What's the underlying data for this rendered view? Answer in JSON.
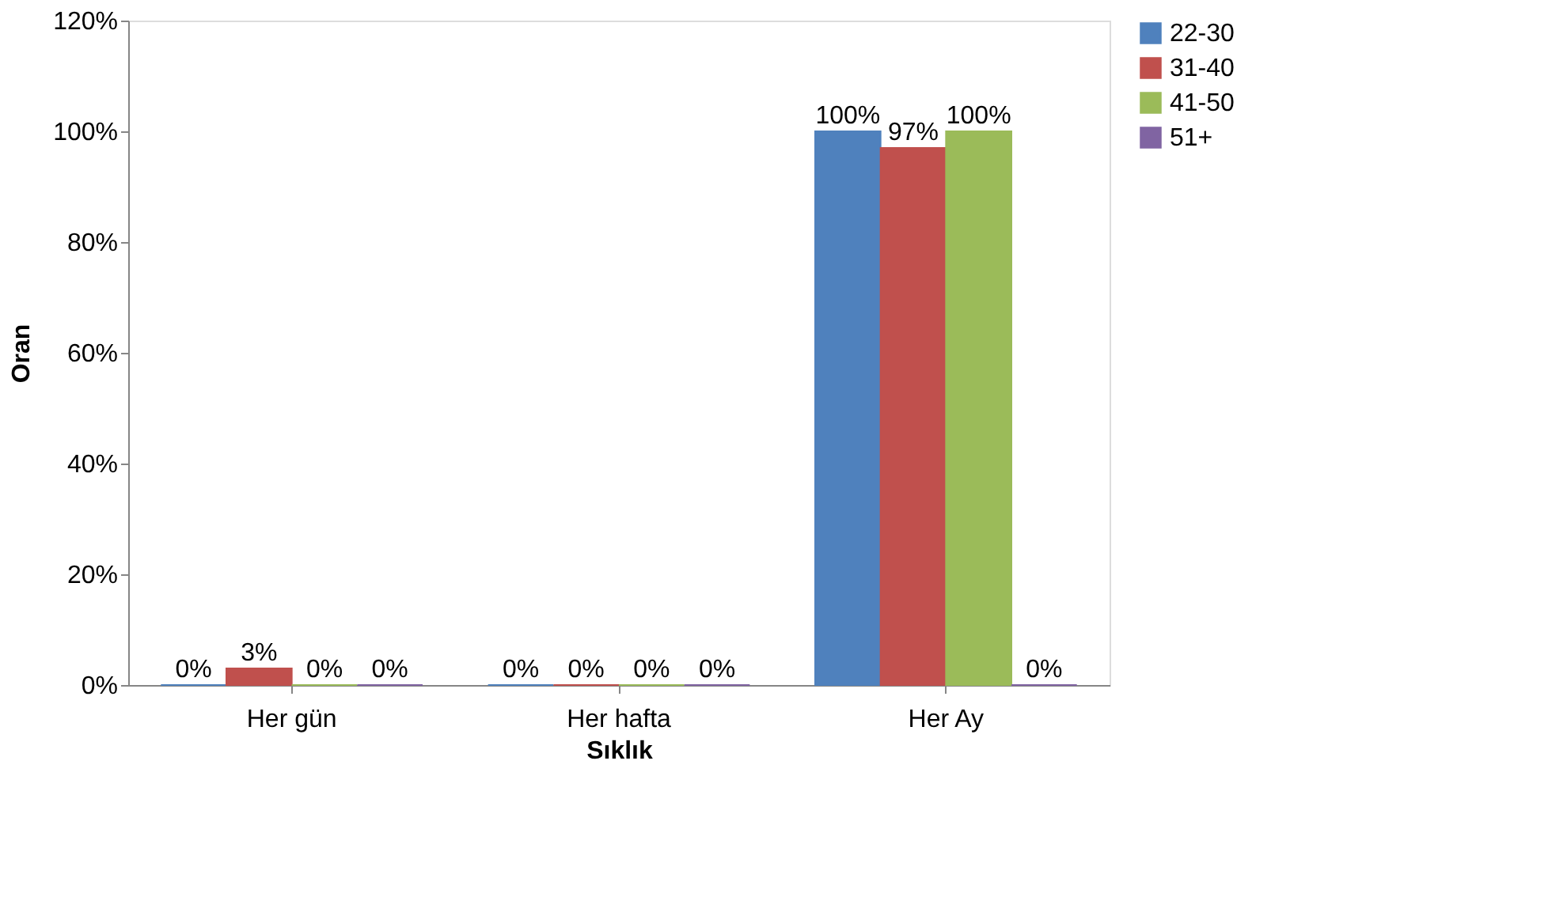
{
  "chart_data": {
    "type": "bar",
    "xlabel": "Sıklık",
    "ylabel": "Oran",
    "categories": [
      "Her gün",
      "Her hafta",
      "Her Ay"
    ],
    "series": [
      {
        "name": "22-30",
        "color": "#4f81bd",
        "values": [
          0,
          0,
          100
        ],
        "value_labels": [
          "0%",
          "0%",
          "100%"
        ]
      },
      {
        "name": "31-40",
        "color": "#c0504d",
        "values": [
          3,
          0,
          97
        ],
        "value_labels": [
          "3%",
          "0%",
          "97%"
        ]
      },
      {
        "name": "41-50",
        "color": "#9bbb59",
        "values": [
          0,
          0,
          100
        ],
        "value_labels": [
          "0%",
          "0%",
          "100%"
        ]
      },
      {
        "name": "51+",
        "color": "#8064a2",
        "values": [
          0,
          0,
          0
        ],
        "value_labels": [
          "0%",
          "0%",
          "0%"
        ]
      }
    ],
    "ylim": [
      0,
      120
    ],
    "yticks": [
      {
        "value": 0,
        "label": "0%"
      },
      {
        "value": 20,
        "label": "20%"
      },
      {
        "value": 40,
        "label": "40%"
      },
      {
        "value": 60,
        "label": "60%"
      },
      {
        "value": 80,
        "label": "80%"
      },
      {
        "value": 100,
        "label": "100%"
      },
      {
        "value": 120,
        "label": "120%"
      }
    ],
    "grid": false,
    "legend": "right"
  }
}
